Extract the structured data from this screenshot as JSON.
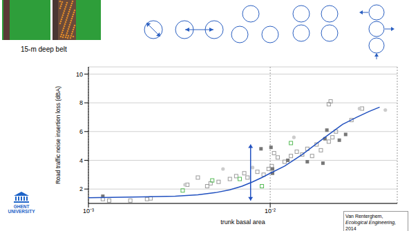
{
  "slide": {
    "caption": "15-m deep belt",
    "logo": [
      "GHENT",
      "UNIVERSITY"
    ],
    "citation": {
      "author": "Van Renterghem,",
      "journal": "Ecological Engineering,",
      "year": "2014"
    }
  },
  "chart_data": {
    "type": "scatter",
    "x_label": "trunk basal area",
    "y_label": "Road traffic noise insertion loss (dBA)",
    "log": "x",
    "grid": true,
    "xlim": [
      0.001,
      0.05
    ],
    "xticks": [
      {
        "value": 0.001,
        "label": "10⁻³"
      },
      {
        "value": 0.01,
        "label": "10⁻²"
      }
    ],
    "ylim": [
      1,
      10.5
    ],
    "yticks": [
      2,
      4,
      6,
      8,
      10
    ],
    "series": [
      {
        "type": "scatter",
        "color": "#9a9a9a",
        "marker": "open_square",
        "x": [
          0.0012,
          0.0013,
          0.0017,
          0.0021,
          0.0022,
          0.0035,
          0.004,
          0.0045,
          0.0047,
          0.0052,
          0.006,
          0.0065,
          0.0072,
          0.0075,
          0.0085,
          0.0092,
          0.0098,
          0.0102,
          0.0105,
          0.011,
          0.012,
          0.013,
          0.014,
          0.015,
          0.016,
          0.017,
          0.018,
          0.019,
          0.021,
          0.022,
          0.023,
          0.021,
          0.0215,
          0.028,
          0.032
        ],
        "values": [
          1.3,
          1.2,
          1.2,
          1.3,
          1.35,
          2.3,
          2.8,
          2.2,
          2.4,
          2.5,
          2.7,
          2.9,
          3.1,
          2.8,
          3.2,
          3.0,
          3.4,
          3.6,
          4.5,
          4.2,
          3.9,
          4.3,
          4.6,
          4.4,
          4.8,
          4.3,
          5.1,
          4.7,
          5.3,
          5.6,
          6.0,
          7.9,
          8.1,
          6.8,
          7.6
        ]
      },
      {
        "type": "scatter",
        "color": "#777777",
        "marker": "square",
        "x": [
          0.0012,
          0.0089,
          0.0101,
          0.0103,
          0.0103,
          0.0125,
          0.016,
          0.0195,
          0.02,
          0.0205,
          0.024,
          0.026
        ],
        "values": [
          1.5,
          4.8,
          4.9,
          3.1,
          3.4,
          4.0,
          3.9,
          3.8,
          5.5,
          6.1,
          5.4,
          5.8
        ]
      },
      {
        "type": "scatter",
        "color": "#cccccc",
        "marker": "circle",
        "x": [
          0.0034,
          0.0055,
          0.008,
          0.0135,
          0.031,
          0.043
        ],
        "values": [
          2.3,
          3.4,
          3.5,
          5.6,
          7.6,
          7.5
        ]
      },
      {
        "type": "scatter",
        "color": "#55bb55",
        "marker": "open_square",
        "x": [
          0.0033,
          0.0048,
          0.0068,
          0.009,
          0.013
        ],
        "values": [
          1.9,
          2.6,
          2.7,
          2.2,
          5.2
        ]
      },
      {
        "type": "line",
        "color": "#1f4fbf",
        "x": [
          0.001,
          0.002,
          0.003,
          0.004,
          0.005,
          0.006,
          0.007,
          0.008,
          0.009,
          0.01,
          0.012,
          0.015,
          0.02,
          0.025,
          0.03,
          0.035,
          0.04
        ],
        "values": [
          1.4,
          1.45,
          1.5,
          1.6,
          1.75,
          1.95,
          2.2,
          2.5,
          2.8,
          3.1,
          3.6,
          4.4,
          5.6,
          6.5,
          7.0,
          7.4,
          7.7
        ]
      }
    ],
    "arrow": {
      "x": 0.0078,
      "y_from": 1.2,
      "y_to": 5.1,
      "color": "#1f4fbf"
    }
  }
}
